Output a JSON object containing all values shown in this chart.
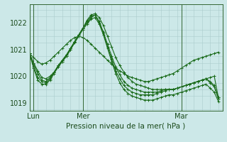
{
  "xlabel": "Pression niveau de la mer( hPa )",
  "bg_color": "#cce8e8",
  "grid_color": "#aacccc",
  "line_color": "#1a6b1a",
  "ylim": [
    1018.7,
    1022.7
  ],
  "xlim": [
    0,
    47
  ],
  "xtick_positions": [
    1,
    13,
    37
  ],
  "xtick_labels": [
    "Lun",
    "Mer",
    "Mar"
  ],
  "ytick_positions": [
    1019,
    1020,
    1021,
    1022
  ],
  "vlines": [
    1,
    13,
    37
  ],
  "series": [
    [
      1020.85,
      1020.7,
      1020.55,
      1020.45,
      1020.5,
      1020.6,
      1020.75,
      1020.9,
      1021.05,
      1021.2,
      1021.35,
      1021.45,
      1021.5,
      1021.45,
      1021.35,
      1021.2,
      1021.05,
      1020.9,
      1020.75,
      1020.6,
      1020.45,
      1020.3,
      1020.2,
      1020.1,
      1020.0,
      1019.95,
      1019.9,
      1019.85,
      1019.8,
      1019.8,
      1019.85,
      1019.9,
      1019.95,
      1020.0,
      1020.05,
      1020.1,
      1020.2,
      1020.3,
      1020.4,
      1020.5,
      1020.6,
      1020.65,
      1020.7,
      1020.75,
      1020.8,
      1020.85,
      1020.9
    ],
    [
      1020.85,
      1020.5,
      1020.2,
      1019.95,
      1019.9,
      1020.0,
      1020.15,
      1020.35,
      1020.55,
      1020.75,
      1021.0,
      1021.3,
      1021.55,
      1021.8,
      1022.1,
      1022.3,
      1022.35,
      1022.2,
      1021.9,
      1021.5,
      1021.1,
      1020.7,
      1020.4,
      1020.15,
      1019.95,
      1019.8,
      1019.7,
      1019.65,
      1019.6,
      1019.55,
      1019.5,
      1019.5,
      1019.5,
      1019.5,
      1019.5,
      1019.5,
      1019.55,
      1019.6,
      1019.65,
      1019.7,
      1019.75,
      1019.8,
      1019.85,
      1019.9,
      1019.95,
      1020.0,
      1019.2
    ],
    [
      1020.85,
      1020.45,
      1020.1,
      1019.85,
      1019.8,
      1019.95,
      1020.15,
      1020.4,
      1020.6,
      1020.8,
      1021.05,
      1021.3,
      1021.55,
      1021.8,
      1022.05,
      1022.25,
      1022.3,
      1022.05,
      1021.65,
      1021.2,
      1020.75,
      1020.35,
      1020.05,
      1019.8,
      1019.65,
      1019.55,
      1019.5,
      1019.45,
      1019.4,
      1019.4,
      1019.4,
      1019.4,
      1019.45,
      1019.5,
      1019.5,
      1019.5,
      1019.55,
      1019.6,
      1019.65,
      1019.7,
      1019.75,
      1019.8,
      1019.85,
      1019.9,
      1019.8,
      1019.65,
      1019.2
    ],
    [
      1020.85,
      1020.35,
      1019.95,
      1019.8,
      1019.75,
      1019.9,
      1020.15,
      1020.4,
      1020.6,
      1020.8,
      1021.05,
      1021.3,
      1021.55,
      1021.8,
      1022.0,
      1022.2,
      1022.3,
      1022.0,
      1021.6,
      1021.1,
      1020.65,
      1020.2,
      1019.9,
      1019.65,
      1019.5,
      1019.4,
      1019.35,
      1019.3,
      1019.3,
      1019.3,
      1019.3,
      1019.35,
      1019.4,
      1019.45,
      1019.5,
      1019.5,
      1019.55,
      1019.6,
      1019.65,
      1019.7,
      1019.75,
      1019.8,
      1019.85,
      1019.9,
      1019.75,
      1019.6,
      1019.15
    ],
    [
      1020.85,
      1020.3,
      1019.85,
      1019.7,
      1019.7,
      1019.85,
      1020.1,
      1020.35,
      1020.55,
      1020.75,
      1021.0,
      1021.25,
      1021.5,
      1021.75,
      1021.95,
      1022.15,
      1022.2,
      1021.95,
      1021.55,
      1021.05,
      1020.55,
      1020.1,
      1019.75,
      1019.5,
      1019.35,
      1019.25,
      1019.2,
      1019.15,
      1019.1,
      1019.1,
      1019.1,
      1019.15,
      1019.2,
      1019.25,
      1019.3,
      1019.3,
      1019.35,
      1019.4,
      1019.45,
      1019.5,
      1019.55,
      1019.6,
      1019.65,
      1019.7,
      1019.55,
      1019.4,
      1019.05
    ]
  ]
}
